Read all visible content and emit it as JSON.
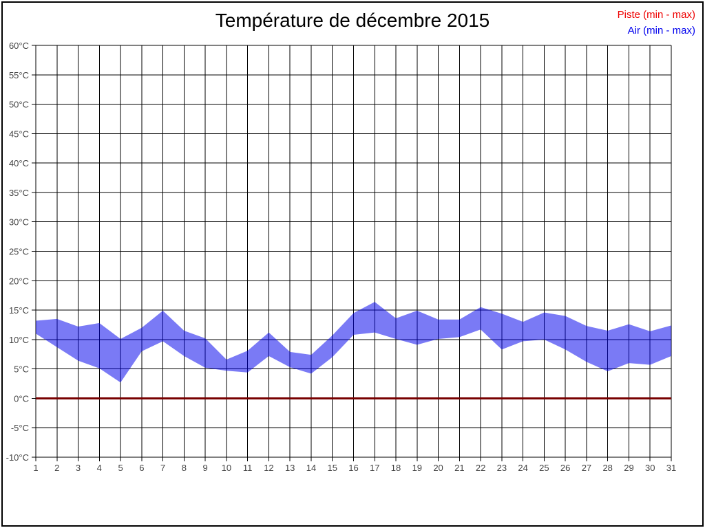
{
  "header": {
    "title": "Température de décembre 2015"
  },
  "legend": {
    "items": [
      {
        "id": "piste",
        "label": "Piste (min - max)",
        "color": "#ee0000"
      },
      {
        "id": "air",
        "label": "Air (min - max)",
        "color": "#0000ee"
      }
    ]
  },
  "colors": {
    "grid": "#000000",
    "frame": "#000000",
    "tick_text": "#434343",
    "background": "#ffffff"
  },
  "chart_data": {
    "type": "area",
    "title": "Température de décembre 2015",
    "xlabel": "",
    "ylabel": "",
    "grid": true,
    "legend_position": "top-right",
    "x": [
      1,
      2,
      3,
      4,
      5,
      6,
      7,
      8,
      9,
      10,
      11,
      12,
      13,
      14,
      15,
      16,
      17,
      18,
      19,
      20,
      21,
      22,
      23,
      24,
      25,
      26,
      27,
      28,
      29,
      30,
      31
    ],
    "x_tick_labels": [
      "1",
      "2",
      "3",
      "4",
      "5",
      "6",
      "7",
      "8",
      "9",
      "10",
      "11",
      "12",
      "13",
      "14",
      "15",
      "16",
      "17",
      "18",
      "19",
      "20",
      "21",
      "22",
      "23",
      "24",
      "25",
      "26",
      "27",
      "28",
      "29",
      "30",
      "31"
    ],
    "ylim": [
      -10,
      60
    ],
    "y_tick_step": 5,
    "y_tick_labels": [
      "60°C",
      "55°C",
      "50°C",
      "45°C",
      "40°C",
      "35°C",
      "30°C",
      "25°C",
      "20°C",
      "15°C",
      "10°C",
      "5°C",
      "0°C",
      "-5°C",
      "-10°C"
    ],
    "series": [
      {
        "name": "Piste (min - max)",
        "kind": "line",
        "color": "#780000",
        "values": [
          0,
          0,
          0,
          0,
          0,
          0,
          0,
          0,
          0,
          0,
          0,
          0,
          0,
          0,
          0,
          0,
          0,
          0,
          0,
          0,
          0,
          0,
          0,
          0,
          0,
          0,
          0,
          0,
          0,
          0,
          0
        ]
      },
      {
        "name": "Air (min - max)",
        "kind": "band",
        "fill": "rgba(0,0,235,0.52)",
        "min": [
          11.0,
          8.7,
          6.4,
          5.1,
          2.7,
          8.0,
          9.7,
          7.2,
          5.2,
          4.7,
          4.4,
          7.2,
          5.3,
          4.2,
          7.0,
          10.8,
          11.2,
          10.1,
          9.1,
          10.1,
          10.4,
          11.7,
          8.3,
          9.7,
          10.0,
          8.3,
          6.2,
          4.6,
          6.0,
          5.7,
          7.2
        ],
        "max": [
          13.2,
          13.5,
          12.2,
          12.8,
          10.1,
          12.0,
          14.9,
          11.5,
          10.2,
          6.6,
          8.1,
          11.2,
          7.9,
          7.4,
          10.7,
          14.5,
          16.4,
          13.6,
          14.9,
          13.4,
          13.4,
          15.5,
          14.4,
          13.0,
          14.6,
          14.0,
          12.3,
          11.5,
          12.6,
          11.4,
          12.4
        ]
      }
    ]
  }
}
